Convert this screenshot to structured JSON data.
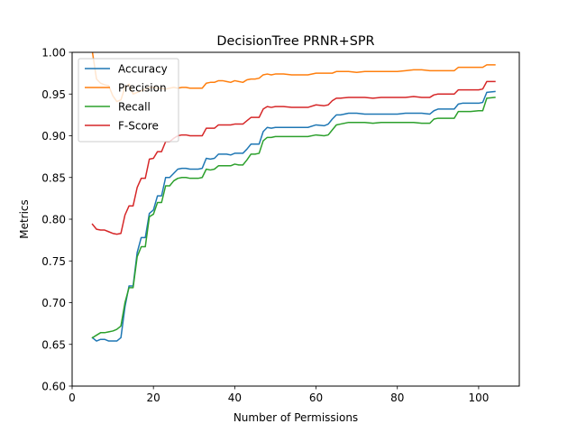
{
  "chart_data": {
    "type": "line",
    "title": "DecisionTree PRNR+SPR",
    "xlabel": "Number of Permissions",
    "ylabel": "Metrics",
    "xlim": [
      0,
      110
    ],
    "ylim": [
      0.6,
      1.0
    ],
    "xticks": [
      0,
      20,
      40,
      60,
      80,
      100
    ],
    "yticks": [
      "0.60",
      "0.65",
      "0.70",
      "0.75",
      "0.80",
      "0.85",
      "0.90",
      "0.95",
      "1.00"
    ],
    "legend_position": "top-left",
    "grid": false,
    "series": [
      {
        "name": "Accuracy",
        "color": "#1f77b4",
        "points": [
          [
            5,
            0.658
          ],
          [
            6,
            0.654
          ],
          [
            7,
            0.656
          ],
          [
            8,
            0.656
          ],
          [
            9,
            0.654
          ],
          [
            10,
            0.654
          ],
          [
            11,
            0.654
          ],
          [
            12,
            0.658
          ],
          [
            13,
            0.695
          ],
          [
            14,
            0.72
          ],
          [
            15,
            0.72
          ],
          [
            16,
            0.76
          ],
          [
            17,
            0.778
          ],
          [
            18,
            0.778
          ],
          [
            19,
            0.807
          ],
          [
            20,
            0.811
          ],
          [
            21,
            0.828
          ],
          [
            22,
            0.828
          ],
          [
            23,
            0.85
          ],
          [
            24,
            0.85
          ],
          [
            25,
            0.855
          ],
          [
            26,
            0.86
          ],
          [
            27,
            0.861
          ],
          [
            28,
            0.861
          ],
          [
            29,
            0.86
          ],
          [
            30,
            0.86
          ],
          [
            31,
            0.86
          ],
          [
            32,
            0.861
          ],
          [
            33,
            0.873
          ],
          [
            34,
            0.872
          ],
          [
            35,
            0.873
          ],
          [
            36,
            0.878
          ],
          [
            37,
            0.878
          ],
          [
            38,
            0.878
          ],
          [
            39,
            0.877
          ],
          [
            40,
            0.879
          ],
          [
            41,
            0.879
          ],
          [
            42,
            0.879
          ],
          [
            43,
            0.884
          ],
          [
            44,
            0.89
          ],
          [
            45,
            0.89
          ],
          [
            46,
            0.89
          ],
          [
            47,
            0.905
          ],
          [
            48,
            0.91
          ],
          [
            49,
            0.909
          ],
          [
            50,
            0.91
          ],
          [
            52,
            0.91
          ],
          [
            54,
            0.91
          ],
          [
            56,
            0.91
          ],
          [
            58,
            0.91
          ],
          [
            60,
            0.913
          ],
          [
            62,
            0.912
          ],
          [
            63,
            0.914
          ],
          [
            64,
            0.92
          ],
          [
            65,
            0.925
          ],
          [
            66,
            0.925
          ],
          [
            68,
            0.927
          ],
          [
            70,
            0.927
          ],
          [
            72,
            0.926
          ],
          [
            74,
            0.926
          ],
          [
            76,
            0.926
          ],
          [
            78,
            0.926
          ],
          [
            80,
            0.926
          ],
          [
            82,
            0.927
          ],
          [
            84,
            0.927
          ],
          [
            86,
            0.927
          ],
          [
            88,
            0.926
          ],
          [
            89,
            0.93
          ],
          [
            90,
            0.932
          ],
          [
            92,
            0.932
          ],
          [
            94,
            0.932
          ],
          [
            95,
            0.938
          ],
          [
            96,
            0.939
          ],
          [
            98,
            0.939
          ],
          [
            100,
            0.939
          ],
          [
            101,
            0.94
          ],
          [
            102,
            0.952
          ],
          [
            104,
            0.953
          ]
        ]
      },
      {
        "name": "Precision",
        "color": "#ff7f0e",
        "points": [
          [
            5,
            1.0
          ],
          [
            6,
            0.968
          ],
          [
            7,
            0.963
          ],
          [
            8,
            0.961
          ],
          [
            9,
            0.96
          ],
          [
            10,
            0.948
          ],
          [
            11,
            0.941
          ],
          [
            12,
            0.943
          ],
          [
            13,
            0.958
          ],
          [
            14,
            0.962
          ],
          [
            15,
            0.95
          ],
          [
            16,
            0.952
          ],
          [
            17,
            0.954
          ],
          [
            18,
            0.956
          ],
          [
            19,
            0.958
          ],
          [
            20,
            0.958
          ],
          [
            21,
            0.957
          ],
          [
            22,
            0.957
          ],
          [
            23,
            0.956
          ],
          [
            24,
            0.957
          ],
          [
            25,
            0.958
          ],
          [
            26,
            0.957
          ],
          [
            27,
            0.958
          ],
          [
            28,
            0.958
          ],
          [
            29,
            0.957
          ],
          [
            30,
            0.957
          ],
          [
            31,
            0.957
          ],
          [
            32,
            0.957
          ],
          [
            33,
            0.963
          ],
          [
            34,
            0.964
          ],
          [
            35,
            0.964
          ],
          [
            36,
            0.966
          ],
          [
            37,
            0.966
          ],
          [
            38,
            0.965
          ],
          [
            39,
            0.964
          ],
          [
            40,
            0.966
          ],
          [
            41,
            0.965
          ],
          [
            42,
            0.964
          ],
          [
            43,
            0.967
          ],
          [
            44,
            0.968
          ],
          [
            45,
            0.968
          ],
          [
            46,
            0.969
          ],
          [
            47,
            0.973
          ],
          [
            48,
            0.974
          ],
          [
            49,
            0.973
          ],
          [
            50,
            0.974
          ],
          [
            52,
            0.974
          ],
          [
            54,
            0.973
          ],
          [
            56,
            0.973
          ],
          [
            58,
            0.973
          ],
          [
            60,
            0.975
          ],
          [
            62,
            0.975
          ],
          [
            64,
            0.975
          ],
          [
            65,
            0.977
          ],
          [
            66,
            0.977
          ],
          [
            68,
            0.977
          ],
          [
            70,
            0.976
          ],
          [
            72,
            0.977
          ],
          [
            74,
            0.977
          ],
          [
            76,
            0.977
          ],
          [
            78,
            0.977
          ],
          [
            80,
            0.977
          ],
          [
            82,
            0.978
          ],
          [
            84,
            0.979
          ],
          [
            86,
            0.979
          ],
          [
            88,
            0.978
          ],
          [
            90,
            0.978
          ],
          [
            92,
            0.978
          ],
          [
            94,
            0.978
          ],
          [
            95,
            0.982
          ],
          [
            96,
            0.982
          ],
          [
            98,
            0.982
          ],
          [
            100,
            0.982
          ],
          [
            101,
            0.982
          ],
          [
            102,
            0.985
          ],
          [
            104,
            0.985
          ]
        ]
      },
      {
        "name": "Recall",
        "color": "#2ca02c",
        "points": [
          [
            5,
            0.658
          ],
          [
            6,
            0.661
          ],
          [
            7,
            0.664
          ],
          [
            8,
            0.664
          ],
          [
            9,
            0.665
          ],
          [
            10,
            0.666
          ],
          [
            11,
            0.668
          ],
          [
            12,
            0.672
          ],
          [
            13,
            0.7
          ],
          [
            14,
            0.718
          ],
          [
            15,
            0.718
          ],
          [
            16,
            0.755
          ],
          [
            17,
            0.767
          ],
          [
            18,
            0.767
          ],
          [
            19,
            0.803
          ],
          [
            20,
            0.806
          ],
          [
            21,
            0.82
          ],
          [
            22,
            0.82
          ],
          [
            23,
            0.84
          ],
          [
            24,
            0.84
          ],
          [
            25,
            0.846
          ],
          [
            26,
            0.849
          ],
          [
            27,
            0.85
          ],
          [
            28,
            0.85
          ],
          [
            29,
            0.849
          ],
          [
            30,
            0.849
          ],
          [
            31,
            0.849
          ],
          [
            32,
            0.85
          ],
          [
            33,
            0.86
          ],
          [
            34,
            0.859
          ],
          [
            35,
            0.86
          ],
          [
            36,
            0.864
          ],
          [
            37,
            0.864
          ],
          [
            38,
            0.864
          ],
          [
            39,
            0.864
          ],
          [
            40,
            0.866
          ],
          [
            41,
            0.865
          ],
          [
            42,
            0.865
          ],
          [
            43,
            0.871
          ],
          [
            44,
            0.878
          ],
          [
            45,
            0.878
          ],
          [
            46,
            0.879
          ],
          [
            47,
            0.894
          ],
          [
            48,
            0.898
          ],
          [
            49,
            0.898
          ],
          [
            50,
            0.899
          ],
          [
            52,
            0.899
          ],
          [
            54,
            0.899
          ],
          [
            56,
            0.899
          ],
          [
            58,
            0.899
          ],
          [
            60,
            0.901
          ],
          [
            62,
            0.9
          ],
          [
            63,
            0.901
          ],
          [
            64,
            0.907
          ],
          [
            65,
            0.913
          ],
          [
            66,
            0.914
          ],
          [
            68,
            0.916
          ],
          [
            70,
            0.916
          ],
          [
            72,
            0.916
          ],
          [
            74,
            0.915
          ],
          [
            76,
            0.916
          ],
          [
            78,
            0.916
          ],
          [
            80,
            0.916
          ],
          [
            82,
            0.916
          ],
          [
            84,
            0.916
          ],
          [
            86,
            0.915
          ],
          [
            88,
            0.915
          ],
          [
            89,
            0.92
          ],
          [
            90,
            0.921
          ],
          [
            92,
            0.921
          ],
          [
            94,
            0.921
          ],
          [
            95,
            0.929
          ],
          [
            96,
            0.929
          ],
          [
            98,
            0.929
          ],
          [
            100,
            0.93
          ],
          [
            101,
            0.93
          ],
          [
            102,
            0.945
          ],
          [
            104,
            0.946
          ]
        ]
      },
      {
        "name": "F-Score",
        "color": "#d62728",
        "points": [
          [
            5,
            0.794
          ],
          [
            6,
            0.788
          ],
          [
            7,
            0.787
          ],
          [
            8,
            0.787
          ],
          [
            9,
            0.785
          ],
          [
            10,
            0.783
          ],
          [
            11,
            0.782
          ],
          [
            12,
            0.783
          ],
          [
            13,
            0.805
          ],
          [
            14,
            0.816
          ],
          [
            15,
            0.816
          ],
          [
            16,
            0.838
          ],
          [
            17,
            0.849
          ],
          [
            18,
            0.849
          ],
          [
            19,
            0.872
          ],
          [
            20,
            0.873
          ],
          [
            21,
            0.881
          ],
          [
            22,
            0.881
          ],
          [
            23,
            0.893
          ],
          [
            24,
            0.893
          ],
          [
            25,
            0.897
          ],
          [
            26,
            0.9
          ],
          [
            27,
            0.901
          ],
          [
            28,
            0.901
          ],
          [
            29,
            0.9
          ],
          [
            30,
            0.9
          ],
          [
            31,
            0.9
          ],
          [
            32,
            0.9
          ],
          [
            33,
            0.909
          ],
          [
            34,
            0.909
          ],
          [
            35,
            0.909
          ],
          [
            36,
            0.913
          ],
          [
            37,
            0.913
          ],
          [
            38,
            0.913
          ],
          [
            39,
            0.913
          ],
          [
            40,
            0.914
          ],
          [
            41,
            0.914
          ],
          [
            42,
            0.914
          ],
          [
            43,
            0.918
          ],
          [
            44,
            0.922
          ],
          [
            45,
            0.922
          ],
          [
            46,
            0.922
          ],
          [
            47,
            0.932
          ],
          [
            48,
            0.935
          ],
          [
            49,
            0.934
          ],
          [
            50,
            0.935
          ],
          [
            52,
            0.935
          ],
          [
            54,
            0.934
          ],
          [
            56,
            0.934
          ],
          [
            58,
            0.934
          ],
          [
            60,
            0.937
          ],
          [
            62,
            0.936
          ],
          [
            63,
            0.937
          ],
          [
            64,
            0.942
          ],
          [
            65,
            0.945
          ],
          [
            66,
            0.945
          ],
          [
            68,
            0.946
          ],
          [
            70,
            0.946
          ],
          [
            72,
            0.946
          ],
          [
            74,
            0.945
          ],
          [
            76,
            0.946
          ],
          [
            78,
            0.946
          ],
          [
            80,
            0.946
          ],
          [
            82,
            0.946
          ],
          [
            84,
            0.947
          ],
          [
            86,
            0.946
          ],
          [
            88,
            0.946
          ],
          [
            89,
            0.949
          ],
          [
            90,
            0.95
          ],
          [
            92,
            0.95
          ],
          [
            94,
            0.95
          ],
          [
            95,
            0.955
          ],
          [
            96,
            0.955
          ],
          [
            98,
            0.955
          ],
          [
            100,
            0.955
          ],
          [
            101,
            0.956
          ],
          [
            102,
            0.965
          ],
          [
            104,
            0.965
          ]
        ]
      }
    ]
  }
}
